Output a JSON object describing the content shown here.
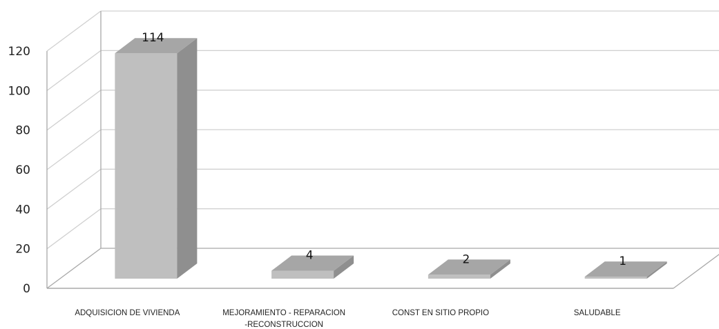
{
  "chart_data": {
    "type": "bar",
    "categories": [
      "ADQUISICION DE VIVIENDA",
      "MEJORAMIENTO - REPARACION -RECONSTRUCCION",
      "CONST EN SITIO PROPIO",
      "SALUDABLE"
    ],
    "category_lines": [
      [
        "ADQUISICION DE VIVIENDA"
      ],
      [
        "MEJORAMIENTO - REPARACION",
        "-RECONSTRUCCION"
      ],
      [
        "CONST EN SITIO PROPIO"
      ],
      [
        "SALUDABLE"
      ]
    ],
    "values": [
      114,
      4,
      2,
      1
    ],
    "data_labels": [
      "114",
      "4",
      "2",
      "1"
    ],
    "y_ticks": [
      "0",
      "20",
      "40",
      "60",
      "80",
      "100",
      "120"
    ],
    "ylim": [
      0,
      120
    ],
    "grid": true,
    "three_d": true,
    "title": "",
    "xlabel": "",
    "ylabel": "",
    "colors": {
      "front": "#bfbfbf",
      "side": "#8f8f8f",
      "top": "#a6a6a6",
      "grid": "#d0d0d0",
      "axis": "#a8a8a8"
    }
  }
}
